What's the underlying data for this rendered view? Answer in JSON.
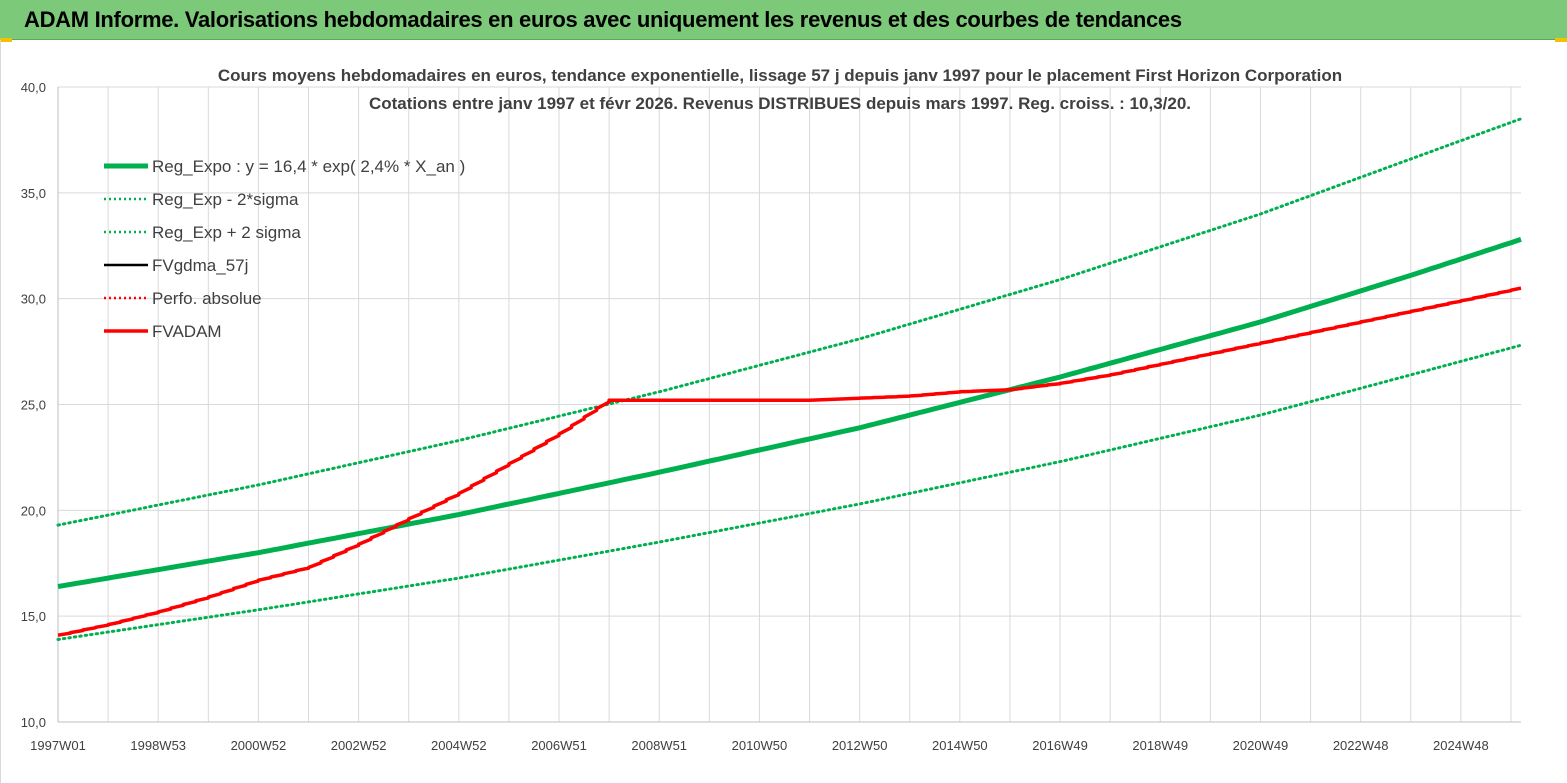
{
  "banner": {
    "title": "ADAM Informe. Valorisations hebdomadaires en euros avec uniquement les revenus et des courbes de tendances"
  },
  "colors": {
    "banner_bg": "#7dc97a",
    "reg_expo": "#00b050",
    "fvgdma": "#000000",
    "perfo": "#ff0000",
    "fvadam": "#ff0000",
    "grid": "#d9d9d9"
  },
  "chart_data": {
    "type": "line",
    "title_line1": "Cours moyens hebdomadaires en euros, tendance exponentielle, lissage 57 j depuis janv 1997 pour le placement First Horizon Corporation",
    "title_line2": "Cotations entre janv 1997 et févr 2026. Revenus DISTRIBUES depuis mars 1997. Reg. croiss. : 10,3/20.",
    "xlabel": "",
    "ylabel": "",
    "ylim": [
      10,
      40
    ],
    "xlim": [
      1997.0,
      2026.2
    ],
    "y_ticks": [
      "10,0",
      "15,0",
      "20,0",
      "25,0",
      "30,0",
      "35,0",
      "40,0"
    ],
    "x_ticks": [
      {
        "label": "1997W01",
        "year": 1997.0
      },
      {
        "label": "1998W53",
        "year": 1999.0
      },
      {
        "label": "2000W52",
        "year": 2001.0
      },
      {
        "label": "2002W52",
        "year": 2003.0
      },
      {
        "label": "2004W52",
        "year": 2005.0
      },
      {
        "label": "2006W51",
        "year": 2007.0
      },
      {
        "label": "2008W51",
        "year": 2009.0
      },
      {
        "label": "2010W50",
        "year": 2011.0
      },
      {
        "label": "2012W50",
        "year": 2013.0
      },
      {
        "label": "2014W50",
        "year": 2015.0
      },
      {
        "label": "2016W49",
        "year": 2017.0
      },
      {
        "label": "2018W49",
        "year": 2019.0
      },
      {
        "label": "2020W49",
        "year": 2021.0
      },
      {
        "label": "2022W48",
        "year": 2023.0
      },
      {
        "label": "2024W48",
        "year": 2025.0
      }
    ],
    "grid": true,
    "legend_position": "top-left",
    "series": [
      {
        "name": "Reg_Expo : y = 16,4 * exp( 2,4% *  X_an )",
        "style": "solid-thick",
        "color": "#00b050",
        "x": [
          1997.0,
          2001.0,
          2005.0,
          2009.0,
          2013.0,
          2017.0,
          2021.0,
          2024.0,
          2026.2
        ],
        "y": [
          16.4,
          18.0,
          19.8,
          21.8,
          23.9,
          26.3,
          28.9,
          31.1,
          32.8
        ]
      },
      {
        "name": "Reg_Exp - 2*sigma",
        "style": "dotted",
        "color": "#00b050",
        "x": [
          1997.0,
          2001.0,
          2005.0,
          2009.0,
          2013.0,
          2017.0,
          2021.0,
          2024.0,
          2026.2
        ],
        "y": [
          13.9,
          15.3,
          16.8,
          18.5,
          20.3,
          22.3,
          24.5,
          26.4,
          27.8
        ]
      },
      {
        "name": "Reg_Exp + 2 sigma",
        "style": "dotted",
        "color": "#00b050",
        "x": [
          1997.0,
          2001.0,
          2005.0,
          2009.0,
          2013.0,
          2017.0,
          2021.0,
          2024.0,
          2026.2
        ],
        "y": [
          19.3,
          21.2,
          23.3,
          25.6,
          28.1,
          30.9,
          34.0,
          36.6,
          38.5
        ]
      },
      {
        "name": "FVgdma_57j",
        "style": "solid",
        "color": "#000000",
        "x": [],
        "y": []
      },
      {
        "name": "Perfo. absolue",
        "style": "dotted",
        "color": "#ff0000",
        "x": [],
        "y": []
      },
      {
        "name": "FVADAM",
        "style": "solid-thick-stepped",
        "color": "#ff0000",
        "x": [
          1997.0,
          1998.0,
          1999.0,
          2000.0,
          2001.0,
          2002.0,
          2003.0,
          2004.0,
          2005.0,
          2006.0,
          2007.0,
          2008.0,
          2009.0,
          2010.0,
          2011.0,
          2012.0,
          2013.0,
          2014.0,
          2015.0,
          2016.0,
          2017.0,
          2018.0,
          2019.0,
          2020.0,
          2021.0,
          2022.0,
          2023.0,
          2024.0,
          2025.0,
          2026.2
        ],
        "y": [
          14.1,
          14.6,
          15.2,
          15.9,
          16.7,
          17.3,
          18.4,
          19.6,
          20.8,
          22.2,
          23.6,
          25.2,
          25.2,
          25.2,
          25.2,
          25.2,
          25.3,
          25.4,
          25.6,
          25.7,
          26.0,
          26.4,
          26.9,
          27.4,
          27.9,
          28.4,
          28.9,
          29.4,
          29.9,
          30.5
        ]
      }
    ]
  }
}
